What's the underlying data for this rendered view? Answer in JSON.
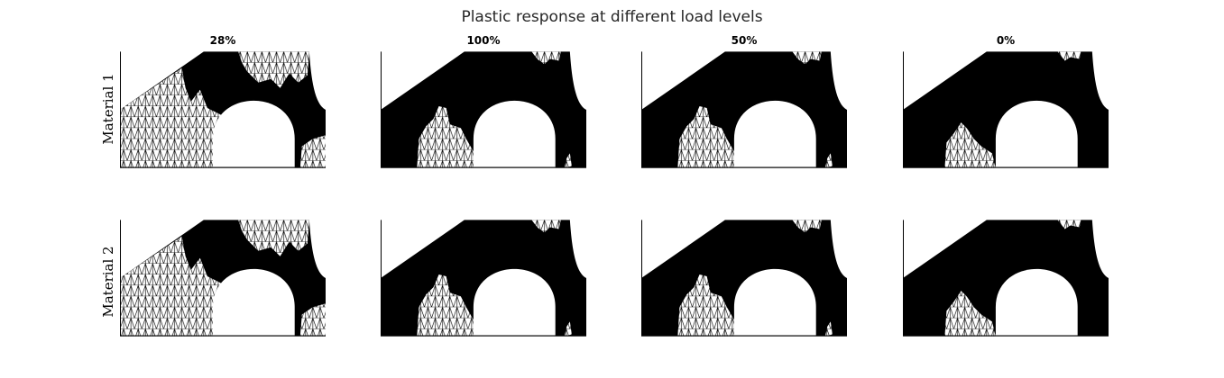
{
  "figure": {
    "title": "Plastic response at different load levels"
  },
  "rows": [
    {
      "label": "Material 1"
    },
    {
      "label": "Material 2"
    }
  ],
  "columns": [
    {
      "load_label": "28%"
    },
    {
      "load_label": "100%"
    },
    {
      "load_label": "50%"
    },
    {
      "load_label": "0%"
    }
  ],
  "colors": {
    "plastic_region": "#000000",
    "elastic_mesh_fill": "#ffffff",
    "mesh_lines": "#000000",
    "title_text": "#262626"
  }
}
